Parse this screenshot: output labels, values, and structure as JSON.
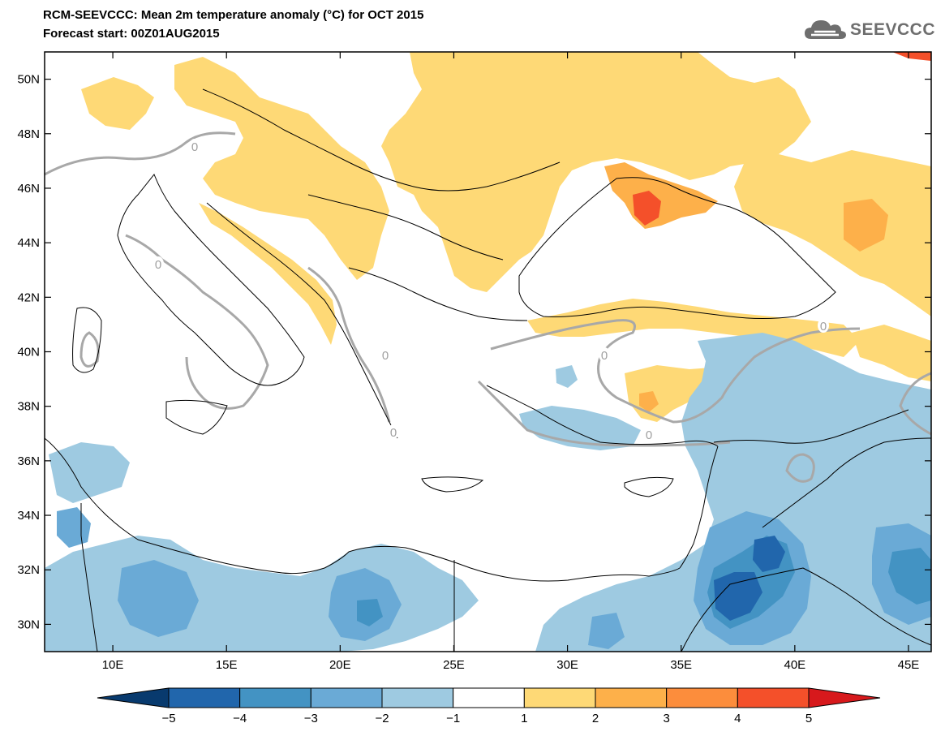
{
  "header": {
    "title": "RCM-SEEVCCC: Mean 2m temperature anomaly (°C) for OCT 2015",
    "subtitle": "Forecast start: 00Z01AUG2015",
    "logo_text": "SEEVCCC"
  },
  "map": {
    "extent": {
      "lon_min": 7,
      "lon_max": 46,
      "lat_min": 29,
      "lat_max": 51
    },
    "contour_label": "0",
    "lat_ticks": [
      {
        "value": 50,
        "label": "50N"
      },
      {
        "value": 48,
        "label": "48N"
      },
      {
        "value": 46,
        "label": "46N"
      },
      {
        "value": 44,
        "label": "44N"
      },
      {
        "value": 42,
        "label": "42N"
      },
      {
        "value": 40,
        "label": "40N"
      },
      {
        "value": 38,
        "label": "38N"
      },
      {
        "value": 36,
        "label": "36N"
      },
      {
        "value": 34,
        "label": "34N"
      },
      {
        "value": 32,
        "label": "32N"
      },
      {
        "value": 30,
        "label": "30N"
      }
    ],
    "lon_ticks": [
      {
        "value": 10,
        "label": "10E"
      },
      {
        "value": 15,
        "label": "15E"
      },
      {
        "value": 20,
        "label": "20E"
      },
      {
        "value": 25,
        "label": "25E"
      },
      {
        "value": 30,
        "label": "30E"
      },
      {
        "value": 35,
        "label": "35E"
      },
      {
        "value": 40,
        "label": "40E"
      },
      {
        "value": 45,
        "label": "45E"
      }
    ]
  },
  "colorbar": {
    "boundaries": [
      "−5",
      "−4",
      "−3",
      "−2",
      "−1",
      "1",
      "2",
      "3",
      "4",
      "5"
    ],
    "colors": [
      "#083a6e",
      "#2166ac",
      "#4393c3",
      "#6aaad6",
      "#9ecae1",
      "#ffffff",
      "#fed976",
      "#fdb04a",
      "#fc8d3c",
      "#f4502a",
      "#d7191c"
    ]
  }
}
